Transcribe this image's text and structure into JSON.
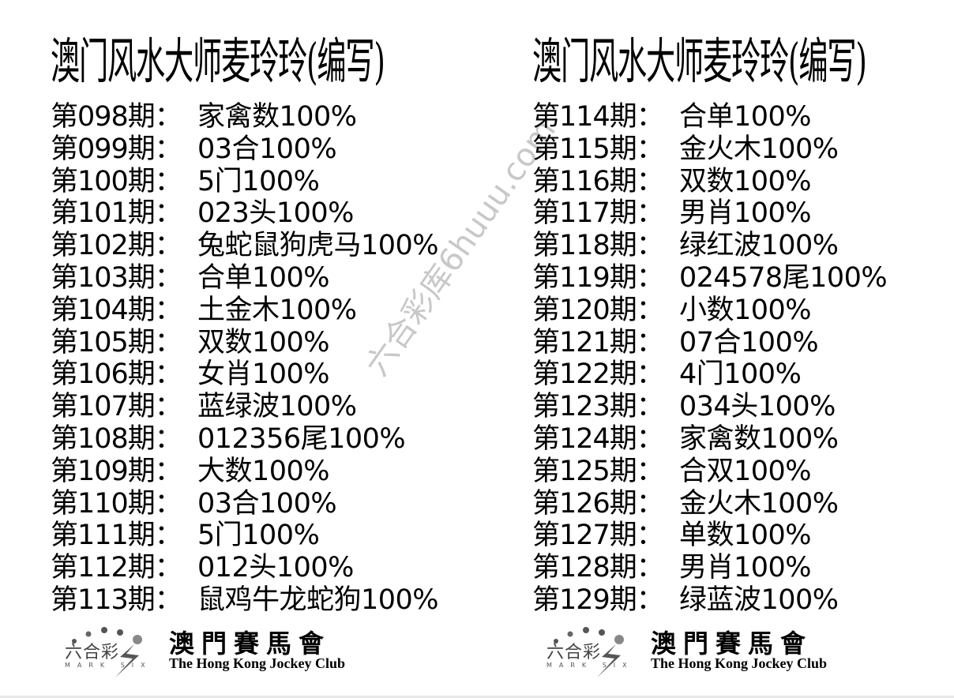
{
  "left": {
    "title": "澳门风水大师麦玲玲(编写)",
    "rows": [
      {
        "label": "第098期：",
        "value": "家禽数100%"
      },
      {
        "label": "第099期：",
        "value": "03合100%"
      },
      {
        "label": "第100期：",
        "value": "5门100%"
      },
      {
        "label": "第101期：",
        "value": "023头100%"
      },
      {
        "label": "第102期：",
        "value": "兔蛇鼠狗虎马100%"
      },
      {
        "label": "第103期：",
        "value": "合单100%"
      },
      {
        "label": "第104期：",
        "value": "土金木100%"
      },
      {
        "label": "第105期：",
        "value": "双数100%"
      },
      {
        "label": "第106期：",
        "value": "女肖100%"
      },
      {
        "label": "第107期：",
        "value": "蓝绿波100%"
      },
      {
        "label": "第108期：",
        "value": "012356尾100%"
      },
      {
        "label": "第109期：",
        "value": "大数100%"
      },
      {
        "label": "第110期：",
        "value": "03合100%"
      },
      {
        "label": "第111期：",
        "value": "5门100%"
      },
      {
        "label": "第112期：",
        "value": "012头100%"
      },
      {
        "label": "第113期：",
        "value": "鼠鸡牛龙蛇狗100%"
      }
    ]
  },
  "right": {
    "title": "澳门风水大师麦玲玲(编写)",
    "rows": [
      {
        "label": "第114期：",
        "value": "合单100%"
      },
      {
        "label": "第115期：",
        "value": "金火木100%"
      },
      {
        "label": "第116期：",
        "value": "双数100%"
      },
      {
        "label": "第117期：",
        "value": "男肖100%"
      },
      {
        "label": "第118期：",
        "value": "绿红波100%"
      },
      {
        "label": "第119期：",
        "value": "024578尾100%"
      },
      {
        "label": "第120期：",
        "value": "小数100%"
      },
      {
        "label": "第121期：",
        "value": "07合100%"
      },
      {
        "label": "第122期：",
        "value": "4门100%"
      },
      {
        "label": "第123期：",
        "value": "034头100%"
      },
      {
        "label": "第124期：",
        "value": "家禽数100%"
      },
      {
        "label": "第125期：",
        "value": "合双100%"
      },
      {
        "label": "第126期：",
        "value": "金火木100%"
      },
      {
        "label": "第127期：",
        "value": "单数100%"
      },
      {
        "label": "第128期：",
        "value": "男肖100%"
      },
      {
        "label": "第129期：",
        "value": "绿蓝波100%"
      }
    ]
  },
  "logo": {
    "mark_six_cn": "六合彩",
    "mark_six_en": "MARK SIX",
    "club_cn": "澳門賽馬會",
    "club_en": "The Hong Kong Jockey Club"
  },
  "watermark": "六合彩库6huuu.com"
}
